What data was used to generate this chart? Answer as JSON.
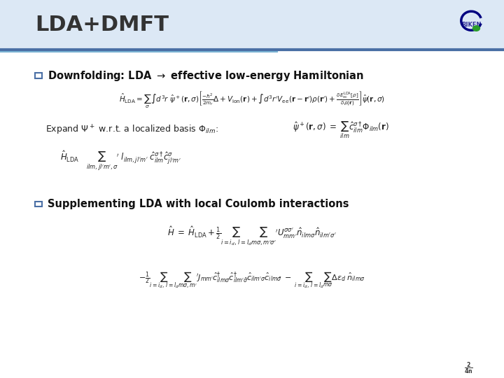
{
  "title": "LDA+DMFT",
  "title_fontsize": 22,
  "title_color": "#333333",
  "bg_color": "#f0f4f8",
  "slide_bg": "#ffffff",
  "header_bar_color": "#4a6fa5",
  "header_bar_height": 0.008,
  "bullet_color": "#4a6fa5",
  "bullet1_text": "Downfolding: LDA \\u2192 effective low-energy Hamiltonian",
  "bullet2_text": "Supplementing LDA with local Coulomb interactions",
  "eq1": "$\\hat{H}_{\\mathrm{LDA}} = \\sum_{\\sigma} \\int d^3r\\; \\hat{\\psi}^+(\\mathbf{r},\\sigma) \\left[ \\frac{-\\hbar^2}{2m_r}\\Delta + V_{\\mathrm{ion}}(\\mathbf{r}) + \\int d^3r' V_{\\mathrm{ee}}(\\mathbf{r}-\\mathbf{r}')\\rho(\\mathbf{r}') + \\frac{\\delta E_{\\mathrm{xc}}^{\\mathrm{LDA}}[\\rho]}{\\delta\\rho(\\mathbf{r})} \\right] \\hat{\\psi}(\\mathbf{r},\\sigma)$",
  "eq2_prefix": "Expand $\\Psi^+$ w.r.t. a localized basis $\\Phi_{ilm}$:",
  "eq2_suffix": "$\\hat{\\psi}^+(\\mathbf{r},\\sigma) \\;=\\; \\sum_{ilm} \\hat{c}^{\\sigma\\dagger}_{ilm} \\Phi_{ilm}(\\mathbf{r})$",
  "eq3": "$\\hat{H}_{\\mathrm{LDA}} \\quad \\sum_{ilm,jl'm',\\sigma}' \\; l_{ilm,jl'm'} \\; \\hat{c}^{\\sigma\\dagger}_{ilm} \\hat{c}^{\\sigma}_{jl'm'}$",
  "eq4": "$\\hat{H} \\;=\\; \\hat{H}_{\\mathrm{LDA}} + \\frac{1}{2} \\sum_{i=i_d, l=l_d} \\sum_{m\\sigma,m'\\sigma'}' U^{\\sigma\\sigma'}_{mm'} \\hat{n}_{ilm\\sigma} \\hat{n}_{ilm'\\sigma'}$",
  "eq5": "$- \\frac{1}{2} \\sum_{i=i_d, l=l_d} \\sum_{m\\sigma,m'}' J_{mm'} \\hat{c}^{\\dagger}_{ilm\\sigma} \\hat{c}^{\\dagger}_{ilm'\\bar{\\sigma}} \\hat{c}_{ilm'\\sigma} \\hat{c}_{ilm\\bar{\\sigma}} \\;-\\; \\sum_{i=i_d, l=l_d} \\sum_{m\\sigma} \\Delta\\epsilon_d \\; \\hat{n}_{ilm\\sigma}$",
  "accent_line_color": "#7ab3d3",
  "text_color": "#222222"
}
